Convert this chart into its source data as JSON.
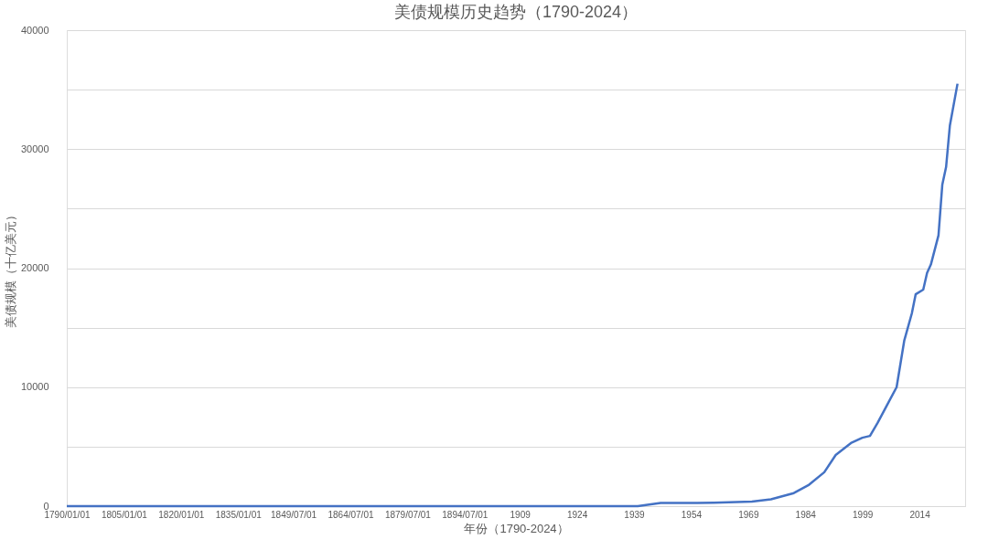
{
  "chart_data": {
    "type": "line",
    "title": "美债规模历史趋势（1790-2024）",
    "xlabel": "年份（1790-2024）",
    "ylabel": "美债规模（十亿美元）",
    "x": [
      1790,
      1940,
      1946,
      1950,
      1960,
      1970,
      1975,
      1981,
      1985,
      1989,
      1992,
      1996,
      1999,
      2001,
      2003,
      2006,
      2008,
      2010,
      2012,
      2013,
      2015,
      2016,
      2017,
      2019,
      2020,
      2021,
      2022,
      2024
    ],
    "series": [
      {
        "color": "#4472c4",
        "values": [
          0,
          0,
          270,
          260,
          290,
          380,
          580,
          1100,
          1800,
          2850,
          4300,
          5300,
          5750,
          5900,
          7000,
          8800,
          10000,
          13900,
          16200,
          17800,
          18200,
          19600,
          20300,
          22750,
          27000,
          28500,
          32000,
          35500
        ]
      }
    ],
    "xlim": [
      1790,
      2026
    ],
    "xticks": [
      {
        "value": 1790,
        "label": "1790/01/01"
      },
      {
        "value": 1805,
        "label": "1805/01/01"
      },
      {
        "value": 1820,
        "label": "1820/01/01"
      },
      {
        "value": 1835,
        "label": "1835/01/01"
      },
      {
        "value": 1849.5,
        "label": "1849/07/01"
      },
      {
        "value": 1864.5,
        "label": "1864/07/01"
      },
      {
        "value": 1879.5,
        "label": "1879/07/01"
      },
      {
        "value": 1894.5,
        "label": "1894/07/01"
      },
      1909,
      1924,
      1939,
      1954,
      1969,
      1984,
      1999,
      2014
    ],
    "ylim": [
      0,
      40000
    ],
    "yticks": [
      0,
      {
        "value": 5000,
        "label": null
      },
      10000,
      {
        "value": 15000,
        "label": null
      },
      20000,
      {
        "value": 25000,
        "label": null
      },
      30000,
      {
        "value": 35000,
        "label": null
      },
      40000
    ],
    "grid": "y",
    "marker": "none",
    "line_style": "solid"
  }
}
